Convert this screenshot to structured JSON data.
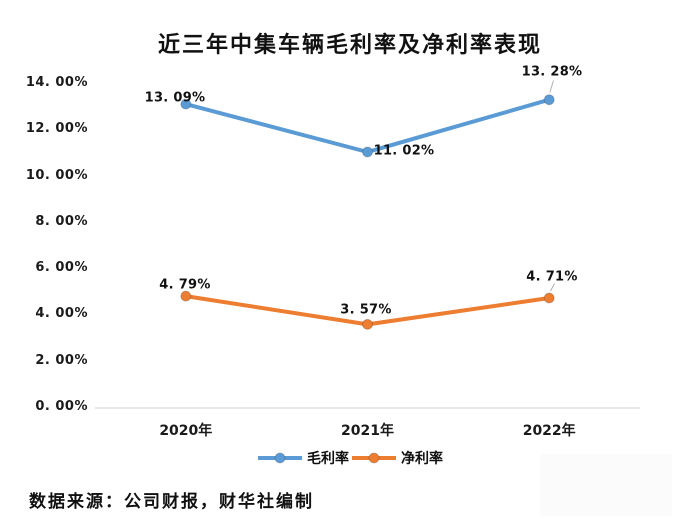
{
  "chart_data": {
    "type": "line",
    "title": "近三年中集车辆毛利率及净利率表现",
    "categories": [
      "2020年",
      "2021年",
      "2022年"
    ],
    "series": [
      {
        "name": "毛利率",
        "color": "#5B9BD5",
        "values": [
          13.09,
          11.02,
          13.28
        ],
        "labels": [
          "13. 09%",
          "11. 02%",
          "13. 28%"
        ]
      },
      {
        "name": "净利率",
        "color": "#ED7D31",
        "values": [
          4.79,
          3.57,
          4.71
        ],
        "labels": [
          "4. 79%",
          "3. 57%",
          "4. 71%"
        ]
      }
    ],
    "y_ticks": [
      "14. 00%",
      "12. 00%",
      "10. 00%",
      "8. 00%",
      "6. 00%",
      "4. 00%",
      "2. 00%",
      "0. 00%"
    ],
    "ylim": [
      0,
      14
    ],
    "y_step": 2,
    "grid": false,
    "legend_position": "bottom",
    "axis_color": "#d9d9d9",
    "leader_line_color": "#b0b0b0",
    "xlabel": "",
    "ylabel": "",
    "source": "数据来源：公司财报，财华社编制"
  }
}
